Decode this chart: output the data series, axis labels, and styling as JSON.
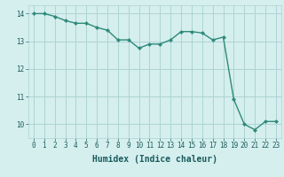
{
  "x": [
    0,
    1,
    2,
    3,
    4,
    5,
    6,
    7,
    8,
    9,
    10,
    11,
    12,
    13,
    14,
    15,
    16,
    17,
    18,
    19,
    20,
    21,
    22,
    23
  ],
  "y": [
    14.0,
    14.0,
    13.9,
    13.75,
    13.65,
    13.65,
    13.5,
    13.4,
    13.05,
    13.05,
    12.75,
    12.9,
    12.9,
    13.05,
    13.35,
    13.35,
    13.3,
    13.05,
    13.15,
    10.9,
    10.0,
    9.8,
    10.1,
    10.1
  ],
  "line_color": "#2e8b7a",
  "marker_color": "#2e8b7a",
  "bg_color": "#d5eeee",
  "grid_color": "#aed4d4",
  "xlabel": "Humidex (Indice chaleur)",
  "xlim": [
    -0.5,
    23.5
  ],
  "ylim": [
    9.5,
    14.3
  ],
  "yticks": [
    10,
    11,
    12,
    13,
    14
  ],
  "xticks": [
    0,
    1,
    2,
    3,
    4,
    5,
    6,
    7,
    8,
    9,
    10,
    11,
    12,
    13,
    14,
    15,
    16,
    17,
    18,
    19,
    20,
    21,
    22,
    23
  ],
  "font_color": "#1a5c5c",
  "tick_labelsize": 5.5,
  "xlabel_fontsize": 7.0,
  "linewidth": 1.0,
  "markersize": 2.0
}
